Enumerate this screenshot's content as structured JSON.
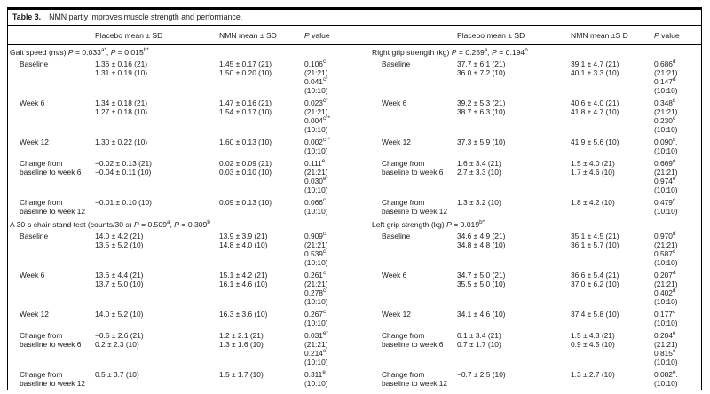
{
  "title": {
    "label": "Table 3.",
    "text": "NMN partly improves muscle strength and performance."
  },
  "columns": [
    "",
    "Placebo mean ± SD",
    "NMN mean ± SD",
    "~P~ value",
    "",
    "Placebo mean ± SD",
    "NMN mean ±S D",
    "~P~ value"
  ],
  "rows": [
    {
      "type": "section",
      "left": "Gait speed (m/s) ~P~ = 0.033^a*^, ~P~ = 0.015^b*^",
      "right": "Right grip strength (kg) ~P~ = 0.259^a^, ~P~ = 0.194^b^"
    },
    {
      "type": "data",
      "left": {
        "label": [
          "Baseline"
        ],
        "placebo": [
          "1.36 ± 0.16 (21)",
          "1.31 ± 0.19 (10)"
        ],
        "nmn": [
          "1.45 ± 0.17 (21)",
          "1.50 ± 0.20 (10)"
        ],
        "p": [
          "0.106^c^",
          "(21:21)",
          "0.041^c*^",
          "(10:10)"
        ]
      },
      "right": {
        "label": [
          "Baseline"
        ],
        "placebo": [
          "37.7 ± 6.1 (21)",
          "36.0 ± 7.2 (10)"
        ],
        "nmn": [
          "39.1 ± 4.7 (21)",
          "40.1 ± 3.3 (10)"
        ],
        "p": [
          "0.686^d^",
          "(21:21)",
          "0.147^d^",
          "(10:10)"
        ]
      }
    },
    {
      "type": "data",
      "left": {
        "label": [
          "Week 6"
        ],
        "placebo": [
          "1.34 ± 0.18 (21)",
          "1.27 ± 0.18 (10)"
        ],
        "nmn": [
          "1.47 ± 0.16 (21)",
          "1.54 ± 0.17 (10)"
        ],
        "p": [
          "0.023^c*^",
          "(21:21)",
          "0.004^c**^",
          "(10:10)"
        ]
      },
      "right": {
        "label": [
          "Week 6"
        ],
        "placebo": [
          "39.2 ± 5.3 (21)",
          "38.7 ± 6.3 (10)"
        ],
        "nmn": [
          "40.6 ± 4.0 (21)",
          "41.8 ± 4.7 (10)"
        ],
        "p": [
          "0.348^c^",
          "(21:21)",
          "0.230^c^",
          "(10:10)"
        ]
      }
    },
    {
      "type": "data",
      "left": {
        "label": [
          "Week 12"
        ],
        "placebo": [
          "1.30 ± 0.22 (10)"
        ],
        "nmn": [
          "1.60 ± 0.13 (10)"
        ],
        "p": [
          "0.002^c**^",
          "(10:10)"
        ]
      },
      "right": {
        "label": [
          "Week 12"
        ],
        "placebo": [
          "37.3 ± 5.9 (10)"
        ],
        "nmn": [
          "41.9 ± 5.6 (10)"
        ],
        "p": [
          "0.090^c^.",
          "(10:10)"
        ]
      }
    },
    {
      "type": "data",
      "left": {
        "label": [
          "Change from",
          "baseline to week 6"
        ],
        "placebo": [
          "−0.02 ± 0.13 (21)",
          "−0.04 ± 0.11 (10)"
        ],
        "nmn": [
          "0.02 ± 0.09 (21)",
          "0.03 ± 0.10 (10)"
        ],
        "p": [
          "0.111^e^",
          "(21:21)",
          "0.030^e*^",
          "(10:10)"
        ]
      },
      "right": {
        "label": [
          "Change from",
          "baseline to week 6"
        ],
        "placebo": [
          "1.6 ± 3.4 (21)",
          "2.7 ± 3.3 (10)"
        ],
        "nmn": [
          "1.5 ± 4.0 (21)",
          "1.7 ± 4.6 (10)"
        ],
        "p": [
          "0.669^e^",
          "(21:21)",
          "0.974^e^",
          "(10:10)"
        ]
      }
    },
    {
      "type": "data",
      "left": {
        "label": [
          "Change from",
          "baseline to week 12"
        ],
        "placebo": [
          "−0.01 ± 0.10 (10)"
        ],
        "nmn": [
          "0.09 ± 0.13 (10)"
        ],
        "p": [
          "0.066^c^",
          "(10:10)"
        ]
      },
      "right": {
        "label": [
          "Change from",
          "baseline to week 12"
        ],
        "placebo": [
          "1.3 ± 3.2 (10)"
        ],
        "nmn": [
          "1.8 ± 4.2 (10)"
        ],
        "p": [
          "0.479^c^",
          "(10:10)"
        ]
      }
    },
    {
      "type": "section",
      "left": "A 30-s chair-stand test (counts/30 s) ~P~ = 0.509^a^, ~P~ = 0.309^b^",
      "right": "Left grip strength (kg) ~P~ = 0.019^b*^"
    },
    {
      "type": "data",
      "left": {
        "label": [
          "Baseline"
        ],
        "placebo": [
          "14.0 ± 4.2 (21)",
          "13.5 ± 5.2 (10)"
        ],
        "nmn": [
          "13.9 ± 3.9 (21)",
          "14.8 ± 4.0 (10)"
        ],
        "p": [
          "0.909^c^",
          "(21:21)",
          "0.539^c^",
          "(10:10)"
        ]
      },
      "right": {
        "label": [
          "Baseline"
        ],
        "placebo": [
          "34.6 ± 4.9 (21)",
          "34.8 ± 4.8 (10)"
        ],
        "nmn": [
          "35.1 ± 4.5 (21)",
          "36.1 ± 5.7 (10)"
        ],
        "p": [
          "0.970^d^",
          "(21:21)",
          "0.587^c^",
          "(10:10)"
        ]
      }
    },
    {
      "type": "data",
      "left": {
        "label": [
          "Week 6"
        ],
        "placebo": [
          "13.6 ± 4.4 (21)",
          "13.7 ± 5.0 (10)"
        ],
        "nmn": [
          "15.1 ± 4.2 (21)",
          "16.1 ± 4.6 (10)"
        ],
        "p": [
          "0.261^c^",
          "(21:21)",
          "0.278^c^",
          "(10:10)"
        ]
      },
      "right": {
        "label": [
          "Week 6"
        ],
        "placebo": [
          "34.7 ± 5.0 (21)",
          "35.5 ± 5.0 (10)"
        ],
        "nmn": [
          "36.6 ± 5.4 (21)",
          "37.0 ± 6.2 (10)"
        ],
        "p": [
          "0.207^d^",
          "(21:21)",
          "0.402^d^",
          "(10:10)"
        ]
      }
    },
    {
      "type": "data",
      "left": {
        "label": [
          "Week 12"
        ],
        "placebo": [
          "14.0 ± 5.2 (10)"
        ],
        "nmn": [
          "16.3 ± 3.6 (10)"
        ],
        "p": [
          "0.267^c^",
          "(10:10)"
        ]
      },
      "right": {
        "label": [
          "Week 12"
        ],
        "placebo": [
          "34.1 ± 4.6 (10)"
        ],
        "nmn": [
          "37.4 ± 5.8 (10)"
        ],
        "p": [
          "0.177^c^",
          "(10:10)"
        ]
      }
    },
    {
      "type": "data",
      "left": {
        "label": [
          "Change from",
          "baseline to week 6"
        ],
        "placebo": [
          "−0.5 ± 2.6 (21)",
          "0.2 ± 2.3 (10)"
        ],
        "nmn": [
          "1.2 ± 2.1 (21)",
          "1.3 ± 1.6 (10)"
        ],
        "p": [
          "0.031^e*^",
          "(21:21)",
          "0.214^e^",
          "(10:10)"
        ]
      },
      "right": {
        "label": [
          "Change from",
          "baseline to week 6"
        ],
        "placebo": [
          "0.1 ± 3.4 (21)",
          "0.7 ± 1.7 (10)"
        ],
        "nmn": [
          "1.5 ± 4.3 (21)",
          "0.9 ± 4.5 (10)"
        ],
        "p": [
          "0.204^e^",
          "(21:21)",
          "0.815^e^",
          "(10:10)"
        ]
      }
    },
    {
      "type": "data",
      "left": {
        "label": [
          "Change from",
          "baseline to week 12"
        ],
        "placebo": [
          "0.5 ± 3.7 (10)"
        ],
        "nmn": [
          "1.5 ± 1.7 (10)"
        ],
        "p": [
          "0.311^e^",
          "(10:10)"
        ]
      },
      "right": {
        "label": [
          "Change from",
          "baseline to week 12"
        ],
        "placebo": [
          "−0.7 ± 2.5 (10)"
        ],
        "nmn": [
          "1.3 ± 2.7 (10)"
        ],
        "p": [
          "0.082^e^.",
          "(10:10)"
        ]
      }
    }
  ]
}
